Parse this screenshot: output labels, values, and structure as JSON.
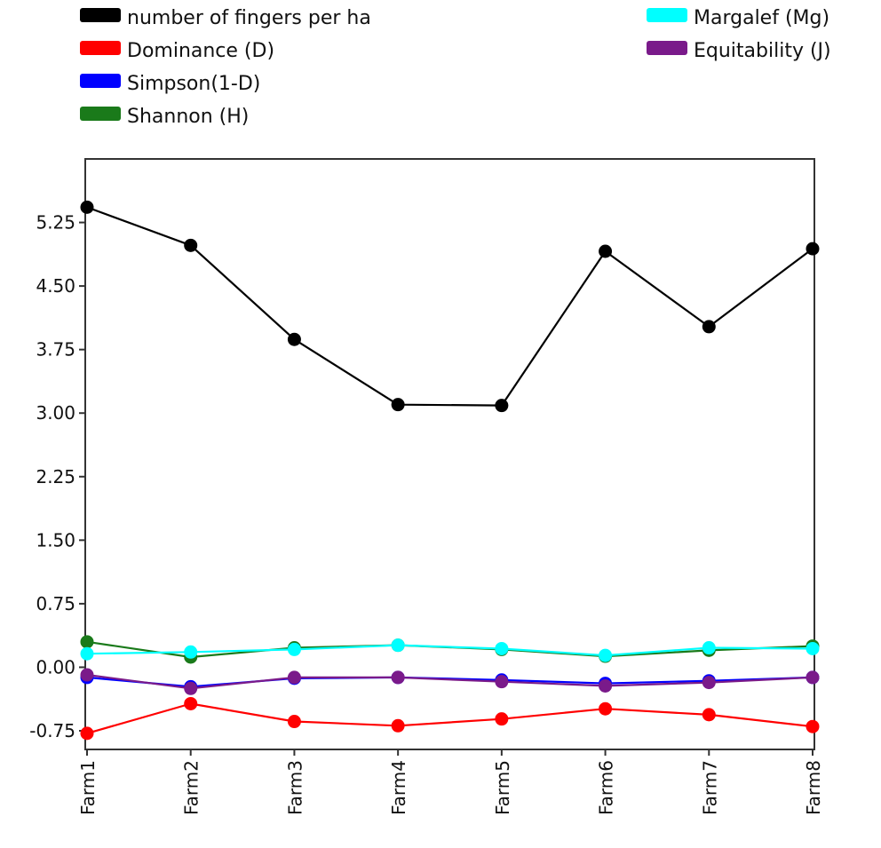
{
  "chart_data": {
    "type": "line",
    "title": "",
    "xlabel": "",
    "ylabel": "",
    "categories": [
      "Farm1",
      "Farm2",
      "Farm3",
      "Farm4",
      "Farm5",
      "Farm6",
      "Farm7",
      "Farm8"
    ],
    "ylim": [
      -0.97,
      6.0
    ],
    "yticks": [
      {
        "value": 5.25,
        "label": "5.25"
      },
      {
        "value": 4.5,
        "label": "4.50"
      },
      {
        "value": 3.75,
        "label": "3.75"
      },
      {
        "value": 3.0,
        "label": "3.00"
      },
      {
        "value": 2.25,
        "label": "2.25"
      },
      {
        "value": 1.5,
        "label": "1.50"
      },
      {
        "value": 0.75,
        "label": "0.75"
      },
      {
        "value": 0.0,
        "label": "0.00"
      },
      {
        "value": -0.75,
        "label": "-0.75"
      }
    ],
    "grid": false,
    "legend_position": "top",
    "series": [
      {
        "name": "number of fingers per ha",
        "color": "#000000",
        "values": [
          5.43,
          4.98,
          3.87,
          3.1,
          3.09,
          4.91,
          4.02,
          4.94
        ]
      },
      {
        "name": "Dominance (D)",
        "color": "#ff0000",
        "values": [
          -0.78,
          -0.43,
          -0.64,
          -0.69,
          -0.61,
          -0.49,
          -0.56,
          -0.7
        ]
      },
      {
        "name": "Simpson(1-D)",
        "color": "#0000ff",
        "values": [
          -0.12,
          -0.23,
          -0.13,
          -0.12,
          -0.15,
          -0.19,
          -0.16,
          -0.12
        ]
      },
      {
        "name": "Shannon (H)",
        "color": "#1a7a1a",
        "values": [
          0.3,
          0.12,
          0.23,
          0.26,
          0.21,
          0.13,
          0.2,
          0.25
        ]
      },
      {
        "name": "Margalef (Mg)",
        "color": "#00ffff",
        "values": [
          0.16,
          0.18,
          0.21,
          0.26,
          0.22,
          0.14,
          0.23,
          0.22
        ]
      },
      {
        "name": "Equitability (J)",
        "color": "#7a1a8a",
        "values": [
          -0.09,
          -0.25,
          -0.12,
          -0.12,
          -0.17,
          -0.22,
          -0.18,
          -0.12
        ]
      }
    ]
  }
}
